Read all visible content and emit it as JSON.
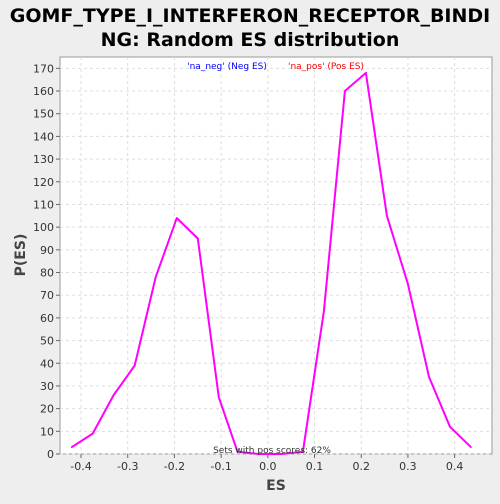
{
  "chart_data": {
    "type": "line",
    "title_lines": [
      "GOMF_TYPE_I_INTERFERON_RECEPTOR_BINDI",
      "NG: Random ES distribution"
    ],
    "xlabel": "ES",
    "ylabel": "P(ES)",
    "xlim": [
      -0.445,
      0.48
    ],
    "ylim": [
      0,
      175
    ],
    "x_ticks": [
      "-0.4",
      "-0.3",
      "-0.2",
      "-0.1",
      "0.0",
      "0.1",
      "0.2",
      "0.3",
      "0.4"
    ],
    "x_tick_values": [
      -0.4,
      -0.3,
      -0.2,
      -0.1,
      0.0,
      0.1,
      0.2,
      0.3,
      0.4
    ],
    "y_ticks": [
      "0",
      "10",
      "20",
      "30",
      "40",
      "50",
      "60",
      "70",
      "80",
      "90",
      "100",
      "110",
      "120",
      "130",
      "140",
      "150",
      "160",
      "170"
    ],
    "y_tick_values": [
      0,
      10,
      20,
      30,
      40,
      50,
      60,
      70,
      80,
      90,
      100,
      110,
      120,
      130,
      140,
      150,
      160,
      170
    ],
    "grid": true,
    "legend": [
      {
        "label": "'na_neg' (Neg ES)",
        "color": "#0000ff"
      },
      {
        "label": "'na_pos' (Pos ES)",
        "color": "#ff0000"
      }
    ],
    "annotation": "Sets with pos scores: 62%",
    "series": [
      {
        "color": "#ff00ff",
        "x": [
          -0.42,
          -0.375,
          -0.33,
          -0.285,
          -0.24,
          -0.195,
          -0.15,
          -0.105,
          -0.065,
          -0.02,
          0.03,
          0.075,
          0.12,
          0.165,
          0.21,
          0.255,
          0.3,
          0.345,
          0.39,
          0.435
        ],
        "y": [
          3,
          9,
          26,
          39,
          78,
          104,
          95,
          25,
          1,
          0,
          0,
          1,
          63,
          160,
          168,
          105,
          75,
          34,
          12,
          3
        ]
      }
    ]
  }
}
